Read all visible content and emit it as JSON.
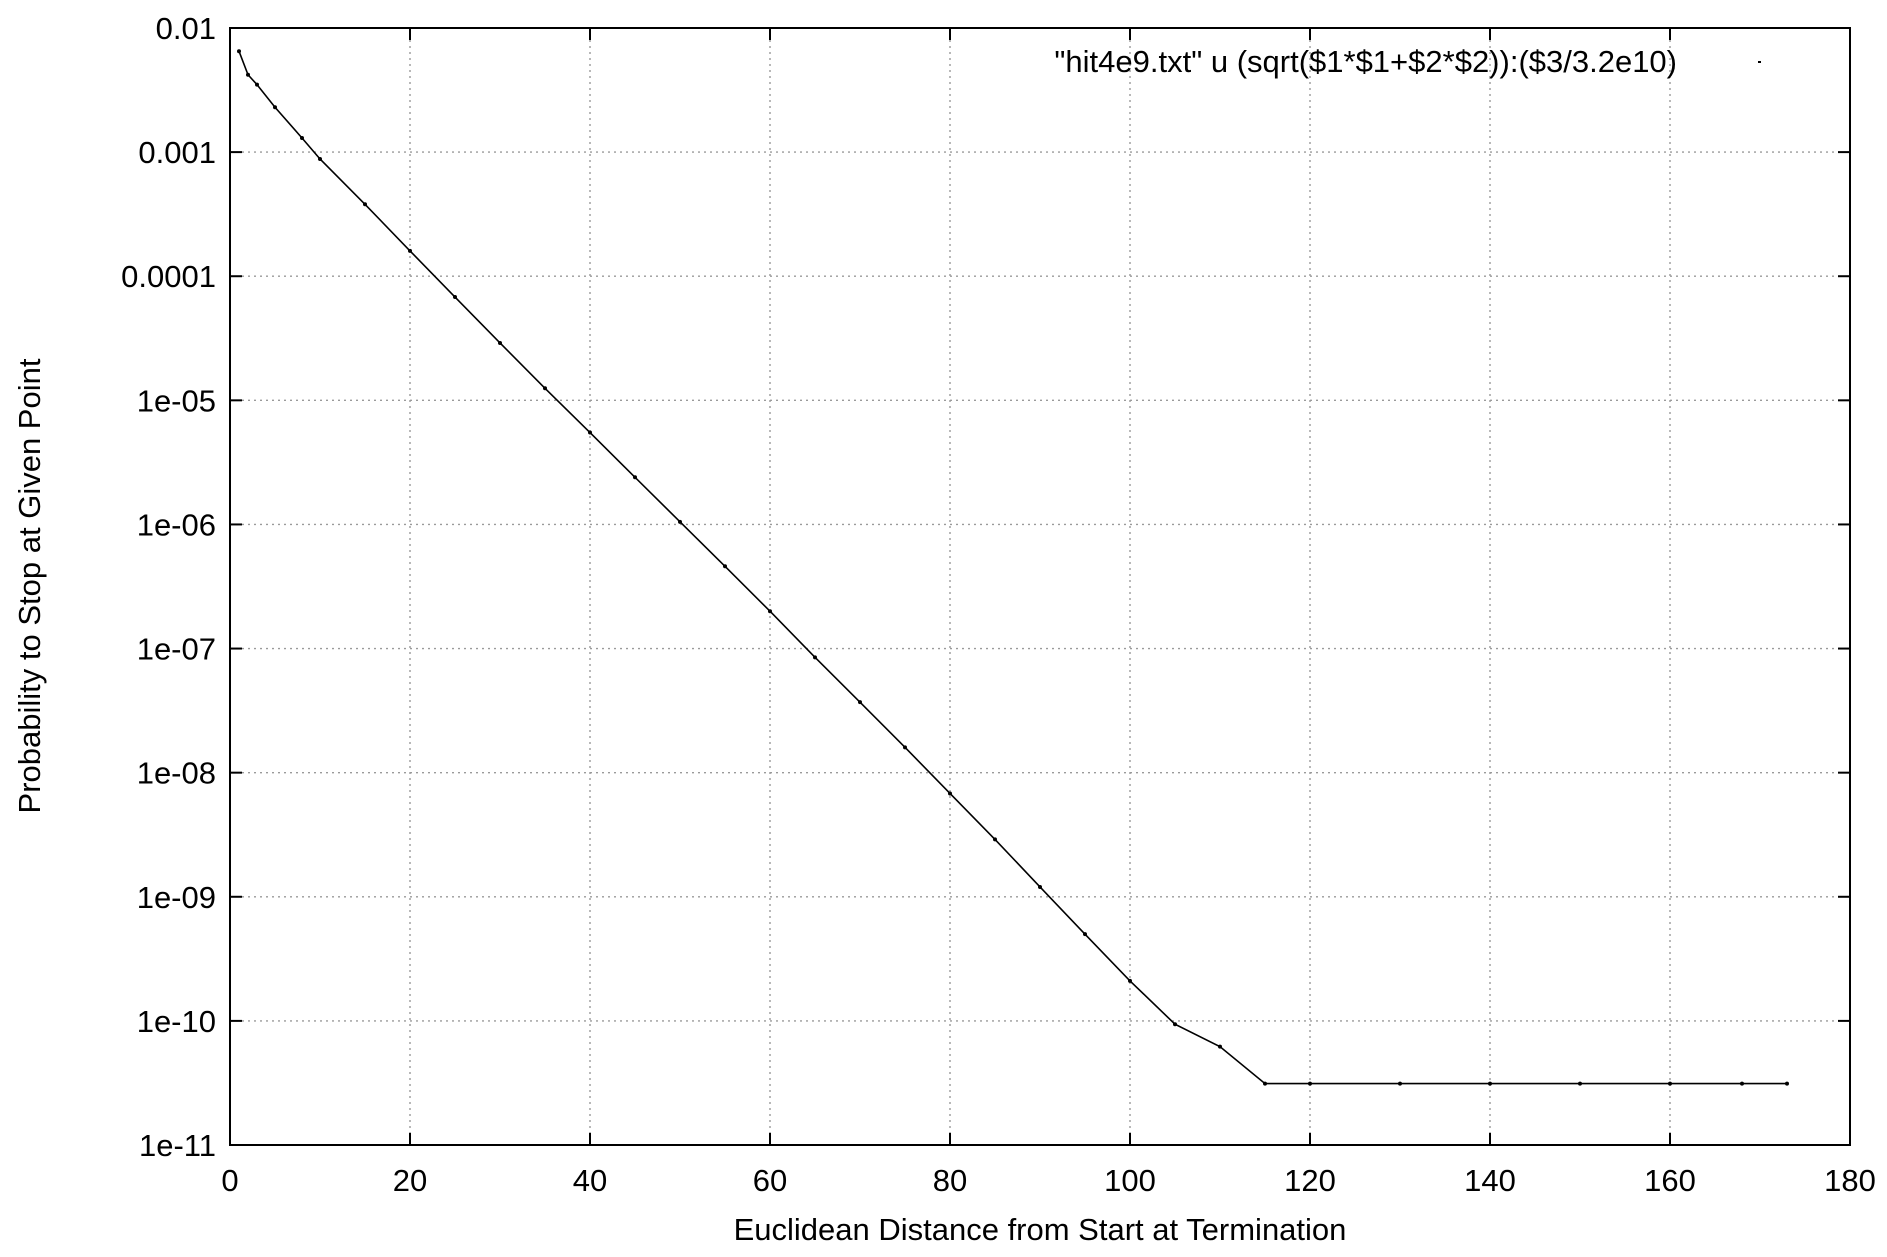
{
  "chart_data": {
    "type": "scatter",
    "title": "",
    "xlabel": "Euclidean Distance from Start at Termination",
    "ylabel": "Probability to Stop at Given Point",
    "xlim": [
      0,
      180
    ],
    "ylim": [
      1e-11,
      0.01
    ],
    "yscale": "log",
    "grid": true,
    "legend_position": "top-right",
    "x_ticks": [
      0,
      20,
      40,
      60,
      80,
      100,
      120,
      140,
      160,
      180
    ],
    "x_tick_labels": [
      "0",
      "20",
      "40",
      "60",
      "80",
      "100",
      "120",
      "140",
      "160",
      "180"
    ],
    "y_ticks": [
      1e-11,
      1e-10,
      1e-09,
      1e-08,
      1e-07,
      1e-06,
      1e-05,
      0.0001,
      0.001,
      0.01
    ],
    "y_tick_labels": [
      "1e-11",
      "1e-10",
      "1e-09",
      "1e-08",
      "1e-07",
      "1e-06",
      "1e-05",
      "0.0001",
      "0.001",
      "0.01"
    ],
    "series": [
      {
        "name": "\"hit4e9.txt\" u (sqrt($1*$1+$2*$2)):($3/3.2e10)",
        "color": "#000000",
        "marker": "dot",
        "points": [
          {
            "x": 1,
            "y": 0.0065
          },
          {
            "x": 2,
            "y": 0.0042
          },
          {
            "x": 3,
            "y": 0.0035
          },
          {
            "x": 5,
            "y": 0.0023
          },
          {
            "x": 8,
            "y": 0.0013
          },
          {
            "x": 10,
            "y": 0.00088
          },
          {
            "x": 15,
            "y": 0.00038
          },
          {
            "x": 20,
            "y": 0.00016
          },
          {
            "x": 25,
            "y": 6.8e-05
          },
          {
            "x": 30,
            "y": 2.9e-05
          },
          {
            "x": 35,
            "y": 1.25e-05
          },
          {
            "x": 40,
            "y": 5.5e-06
          },
          {
            "x": 45,
            "y": 2.4e-06
          },
          {
            "x": 50,
            "y": 1.05e-06
          },
          {
            "x": 55,
            "y": 4.6e-07
          },
          {
            "x": 60,
            "y": 2e-07
          },
          {
            "x": 65,
            "y": 8.5e-08
          },
          {
            "x": 70,
            "y": 3.7e-08
          },
          {
            "x": 75,
            "y": 1.6e-08
          },
          {
            "x": 80,
            "y": 6.8e-09
          },
          {
            "x": 85,
            "y": 2.9e-09
          },
          {
            "x": 90,
            "y": 1.2e-09
          },
          {
            "x": 95,
            "y": 5e-10
          },
          {
            "x": 100,
            "y": 2.1e-10
          },
          {
            "x": 105,
            "y": 9.4e-11
          },
          {
            "x": 110,
            "y": 6.2e-11
          },
          {
            "x": 115,
            "y": 3.125e-11
          },
          {
            "x": 120,
            "y": 3.125e-11
          },
          {
            "x": 130,
            "y": 3.125e-11
          },
          {
            "x": 140,
            "y": 3.125e-11
          },
          {
            "x": 150,
            "y": 3.125e-11
          },
          {
            "x": 160,
            "y": 3.125e-11
          },
          {
            "x": 168,
            "y": 3.125e-11
          },
          {
            "x": 173,
            "y": 3.125e-11
          }
        ]
      }
    ]
  }
}
